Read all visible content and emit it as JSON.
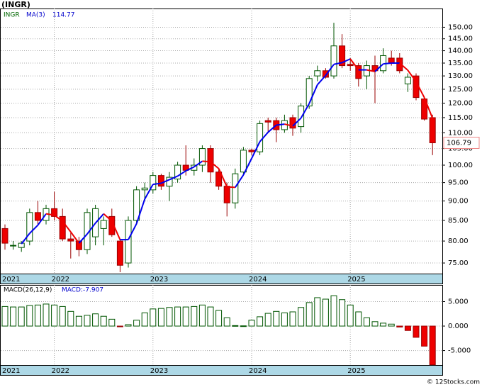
{
  "chart_data": [
    {
      "type": "candlestick",
      "title": "(INGR)",
      "symbol": "INGR",
      "log": true,
      "grid": true,
      "categories": [
        "2021",
        null,
        null,
        null,
        null,
        null,
        "2022",
        null,
        null,
        null,
        null,
        null,
        null,
        null,
        null,
        null,
        null,
        null,
        "2023",
        null,
        null,
        null,
        null,
        null,
        null,
        null,
        null,
        null,
        null,
        null,
        "2024",
        null,
        null,
        null,
        null,
        null,
        null,
        null,
        null,
        null,
        null,
        null,
        "2025",
        null,
        null,
        null,
        null,
        null,
        null,
        null,
        null,
        null,
        null
      ],
      "open": [
        83,
        79,
        78.5,
        80,
        87,
        85,
        88,
        86,
        80.5,
        80,
        78,
        81,
        83,
        86,
        80,
        75,
        85,
        93,
        93,
        97,
        94,
        96,
        100,
        98.5,
        100,
        105,
        98,
        94,
        89.5,
        98,
        104.5,
        104,
        114,
        114,
        111,
        115,
        112,
        119,
        130,
        132,
        130,
        142,
        134.5,
        134,
        130,
        134,
        132,
        137,
        137,
        127,
        130,
        121.5,
        115
      ],
      "high": [
        84,
        80,
        80,
        88,
        90,
        89,
        92.5,
        88,
        82,
        81,
        88,
        89,
        86,
        88,
        80.5,
        86,
        94,
        95,
        98,
        97.5,
        98,
        101,
        106,
        102,
        106,
        106,
        99,
        95,
        99,
        105.5,
        105,
        114,
        115,
        115,
        116,
        116,
        120,
        130,
        134,
        133,
        152,
        147,
        137,
        135,
        136,
        138,
        141,
        140,
        139,
        131,
        131,
        122,
        116
      ],
      "low": [
        78,
        78,
        77.5,
        79,
        84,
        84,
        85,
        80,
        76,
        76.5,
        77,
        79,
        79,
        81,
        73,
        74,
        84,
        90,
        92,
        93,
        90,
        95,
        97,
        97,
        98,
        95,
        93,
        86,
        88,
        97,
        103,
        103,
        110,
        107,
        110,
        109,
        110,
        118,
        128,
        129,
        129,
        133,
        132,
        126,
        125,
        120,
        131,
        134,
        131,
        124,
        121,
        114,
        103
      ],
      "close": [
        79.5,
        79,
        79.5,
        87,
        85,
        88,
        86,
        80.5,
        80,
        78,
        87,
        88,
        85,
        81.5,
        74.5,
        85,
        93,
        93.5,
        97,
        94,
        96.5,
        100,
        98.5,
        100,
        105,
        98,
        94,
        89.5,
        97.5,
        104.5,
        104,
        113,
        113.5,
        111,
        114,
        111.5,
        119,
        129,
        132,
        129.5,
        142,
        134,
        134,
        129,
        134,
        132,
        138,
        135,
        132,
        129.5,
        122,
        114.5,
        106.79
      ],
      "up_color": "#ffffff",
      "up_edge": "#005500",
      "down_color": "#ee0000",
      "down_edge": "#990000",
      "series": [
        {
          "name": "MA(3)",
          "up_color": "#0000ee",
          "down_color": "#ee0000",
          "values": [
            null,
            null,
            79.33,
            81.83,
            83.83,
            86.67,
            86.33,
            84.83,
            82.17,
            79.5,
            81.67,
            84.33,
            86.67,
            84.83,
            80.33,
            80.33,
            84.17,
            90.5,
            94.5,
            94.83,
            95.83,
            96.83,
            98.33,
            99.5,
            101.17,
            101,
            99,
            93.83,
            93.67,
            97.17,
            102,
            107.17,
            110.17,
            112.5,
            112.83,
            112.17,
            114.83,
            119.83,
            126.67,
            130.17,
            134.5,
            135.17,
            136.67,
            132.33,
            132.33,
            131.67,
            134.67,
            135,
            135,
            132.17,
            127.83,
            122,
            114.77
          ]
        }
      ],
      "ylim": [
        72.7,
        158.5
      ],
      "yticks": [
        {
          "value": 75,
          "label": "75.00"
        },
        {
          "value": 80,
          "label": "80.00"
        },
        {
          "value": 85,
          "label": "85.00"
        },
        {
          "value": 90,
          "label": "90.00"
        },
        {
          "value": 95,
          "label": "95.00"
        },
        {
          "value": 100,
          "label": "100.00"
        },
        {
          "value": 105,
          "label": "105.00"
        },
        {
          "value": 110,
          "label": "110.00"
        },
        {
          "value": 115,
          "label": "115.00"
        },
        {
          "value": 120,
          "label": "120.00"
        },
        {
          "value": 125,
          "label": "125.00"
        },
        {
          "value": 130,
          "label": "130.00"
        },
        {
          "value": 135,
          "label": "135.00"
        },
        {
          "value": 140,
          "label": "140.00"
        },
        {
          "value": 145,
          "label": "145.00"
        },
        {
          "value": 150,
          "label": "150.00"
        }
      ]
    },
    {
      "type": "bar",
      "title": "MACD(26,12,9)",
      "value_text": "MACD:-7.907",
      "grid": true,
      "categories": [
        "2021",
        null,
        null,
        null,
        null,
        null,
        "2022",
        null,
        null,
        null,
        null,
        null,
        null,
        null,
        null,
        null,
        null,
        null,
        "2023",
        null,
        null,
        null,
        null,
        null,
        null,
        null,
        null,
        null,
        null,
        null,
        "2024",
        null,
        null,
        null,
        null,
        null,
        null,
        null,
        null,
        null,
        null,
        null,
        "2025",
        null,
        null,
        null,
        null,
        null,
        null,
        null,
        null,
        null,
        null
      ],
      "values": [
        4.0,
        3.9,
        3.9,
        4.2,
        4.3,
        4.5,
        4.3,
        4.0,
        3.0,
        2.0,
        2.2,
        2.5,
        2.0,
        1.4,
        -0.1,
        0.3,
        1.2,
        2.7,
        3.5,
        3.6,
        3.8,
        3.9,
        3.9,
        4.0,
        4.3,
        3.9,
        3.2,
        1.7,
        0.1,
        0.05,
        1.2,
        1.9,
        2.6,
        3.0,
        2.7,
        2.9,
        3.8,
        4.8,
        5.8,
        5.5,
        6.2,
        5.4,
        4.3,
        2.9,
        1.7,
        0.9,
        0.6,
        0.4,
        -0.2,
        -0.9,
        -2.3,
        -4.1,
        -7.907
      ],
      "pos_color": "#ffffff",
      "pos_edge": "#005500",
      "neg_color": "#ee0000",
      "neg_edge": "#990000",
      "ylim": [
        -8.1,
        8.4
      ],
      "yticks": [
        {
          "value": 5,
          "label": "5.000"
        },
        {
          "value": 0,
          "label": "0.000"
        },
        {
          "value": -5,
          "label": "-5.000"
        }
      ]
    }
  ],
  "watermark": "© 12Stocks.com"
}
